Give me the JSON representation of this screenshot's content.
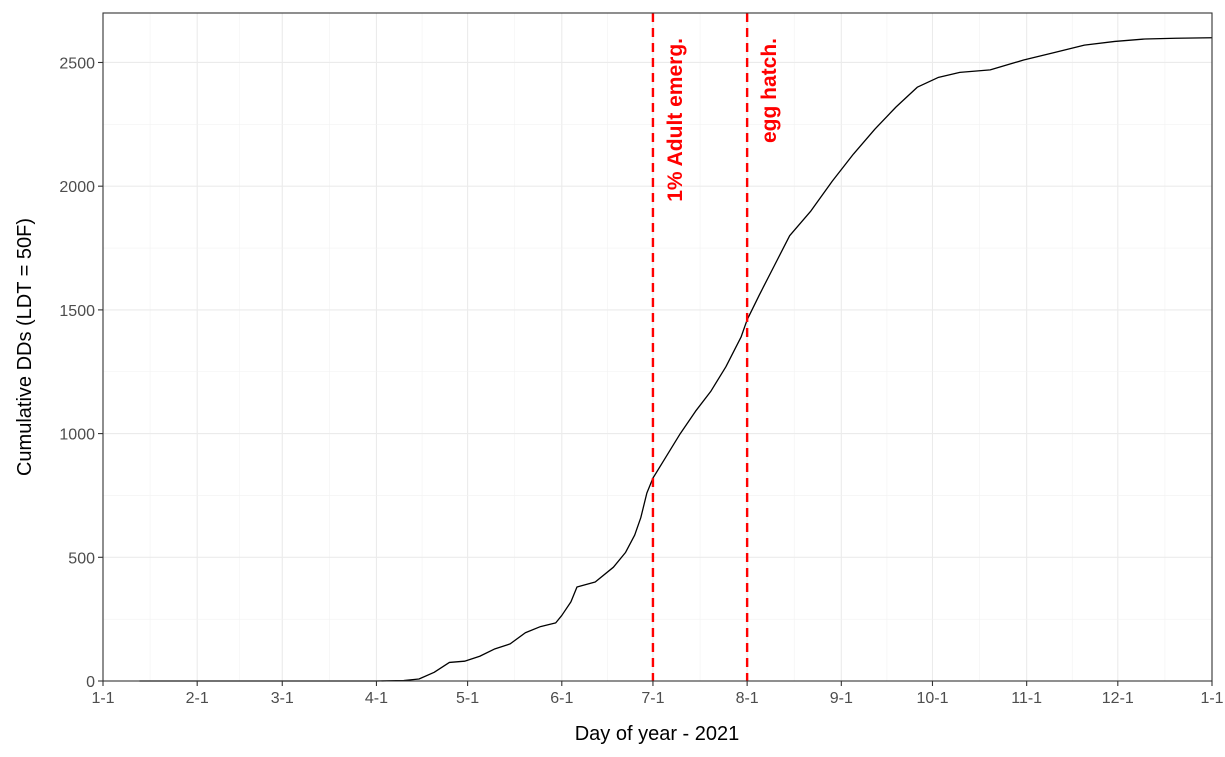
{
  "chart_data": {
    "type": "line",
    "xlabel": "Day of year - 2021",
    "ylabel": "Cumulative DDs (LDT = 50F)",
    "x_tick_labels": [
      "1-1",
      "2-1",
      "3-1",
      "4-1",
      "5-1",
      "6-1",
      "7-1",
      "8-1",
      "9-1",
      "10-1",
      "11-1",
      "12-1",
      "1-1"
    ],
    "x_tick_dates": [
      "2021-01-01",
      "2021-02-01",
      "2021-03-01",
      "2021-04-01",
      "2021-05-01",
      "2021-06-01",
      "2021-07-01",
      "2021-08-01",
      "2021-09-01",
      "2021-10-01",
      "2021-11-01",
      "2021-12-01",
      "2022-01-01"
    ],
    "y_ticks": [
      0,
      500,
      1000,
      1500,
      2000,
      2500
    ],
    "xlim": [
      "2021-01-01",
      "2022-01-01"
    ],
    "ylim": [
      0,
      2700
    ],
    "grid": true,
    "series": [
      {
        "color": "#000000",
        "points": [
          [
            "2021-01-13",
            0
          ],
          [
            "2021-02-01",
            0
          ],
          [
            "2021-03-01",
            0
          ],
          [
            "2021-04-01",
            0
          ],
          [
            "2021-04-10",
            2
          ],
          [
            "2021-04-15",
            8
          ],
          [
            "2021-04-20",
            35
          ],
          [
            "2021-04-25",
            75
          ],
          [
            "2021-04-30",
            80
          ],
          [
            "2021-05-05",
            100
          ],
          [
            "2021-05-10",
            130
          ],
          [
            "2021-05-15",
            150
          ],
          [
            "2021-05-20",
            195
          ],
          [
            "2021-05-25",
            220
          ],
          [
            "2021-05-30",
            235
          ],
          [
            "2021-06-01",
            265
          ],
          [
            "2021-06-04",
            320
          ],
          [
            "2021-06-06",
            380
          ],
          [
            "2021-06-12",
            400
          ],
          [
            "2021-06-18",
            460
          ],
          [
            "2021-06-22",
            520
          ],
          [
            "2021-06-25",
            590
          ],
          [
            "2021-06-27",
            660
          ],
          [
            "2021-06-29",
            760
          ],
          [
            "2021-07-01",
            820
          ],
          [
            "2021-07-05",
            900
          ],
          [
            "2021-07-10",
            1000
          ],
          [
            "2021-07-15",
            1090
          ],
          [
            "2021-07-20",
            1170
          ],
          [
            "2021-07-25",
            1270
          ],
          [
            "2021-07-30",
            1390
          ],
          [
            "2021-08-01",
            1460
          ],
          [
            "2021-08-05",
            1560
          ],
          [
            "2021-08-10",
            1680
          ],
          [
            "2021-08-15",
            1800
          ],
          [
            "2021-08-22",
            1900
          ],
          [
            "2021-08-29",
            2020
          ],
          [
            "2021-09-05",
            2130
          ],
          [
            "2021-09-12",
            2230
          ],
          [
            "2021-09-19",
            2320
          ],
          [
            "2021-09-26",
            2400
          ],
          [
            "2021-10-03",
            2440
          ],
          [
            "2021-10-10",
            2460
          ],
          [
            "2021-10-20",
            2470
          ],
          [
            "2021-10-31",
            2510
          ],
          [
            "2021-11-10",
            2540
          ],
          [
            "2021-11-20",
            2570
          ],
          [
            "2021-11-30",
            2585
          ],
          [
            "2021-12-10",
            2595
          ],
          [
            "2021-12-20",
            2598
          ],
          [
            "2022-01-01",
            2600
          ]
        ]
      }
    ],
    "vlines": [
      {
        "x": "2021-07-01",
        "label": "1% Adult emerg.",
        "color": "#ff0000",
        "style": "dashed"
      },
      {
        "x": "2021-08-01",
        "label": "egg hatch.",
        "color": "#ff0000",
        "style": "dashed"
      }
    ]
  }
}
